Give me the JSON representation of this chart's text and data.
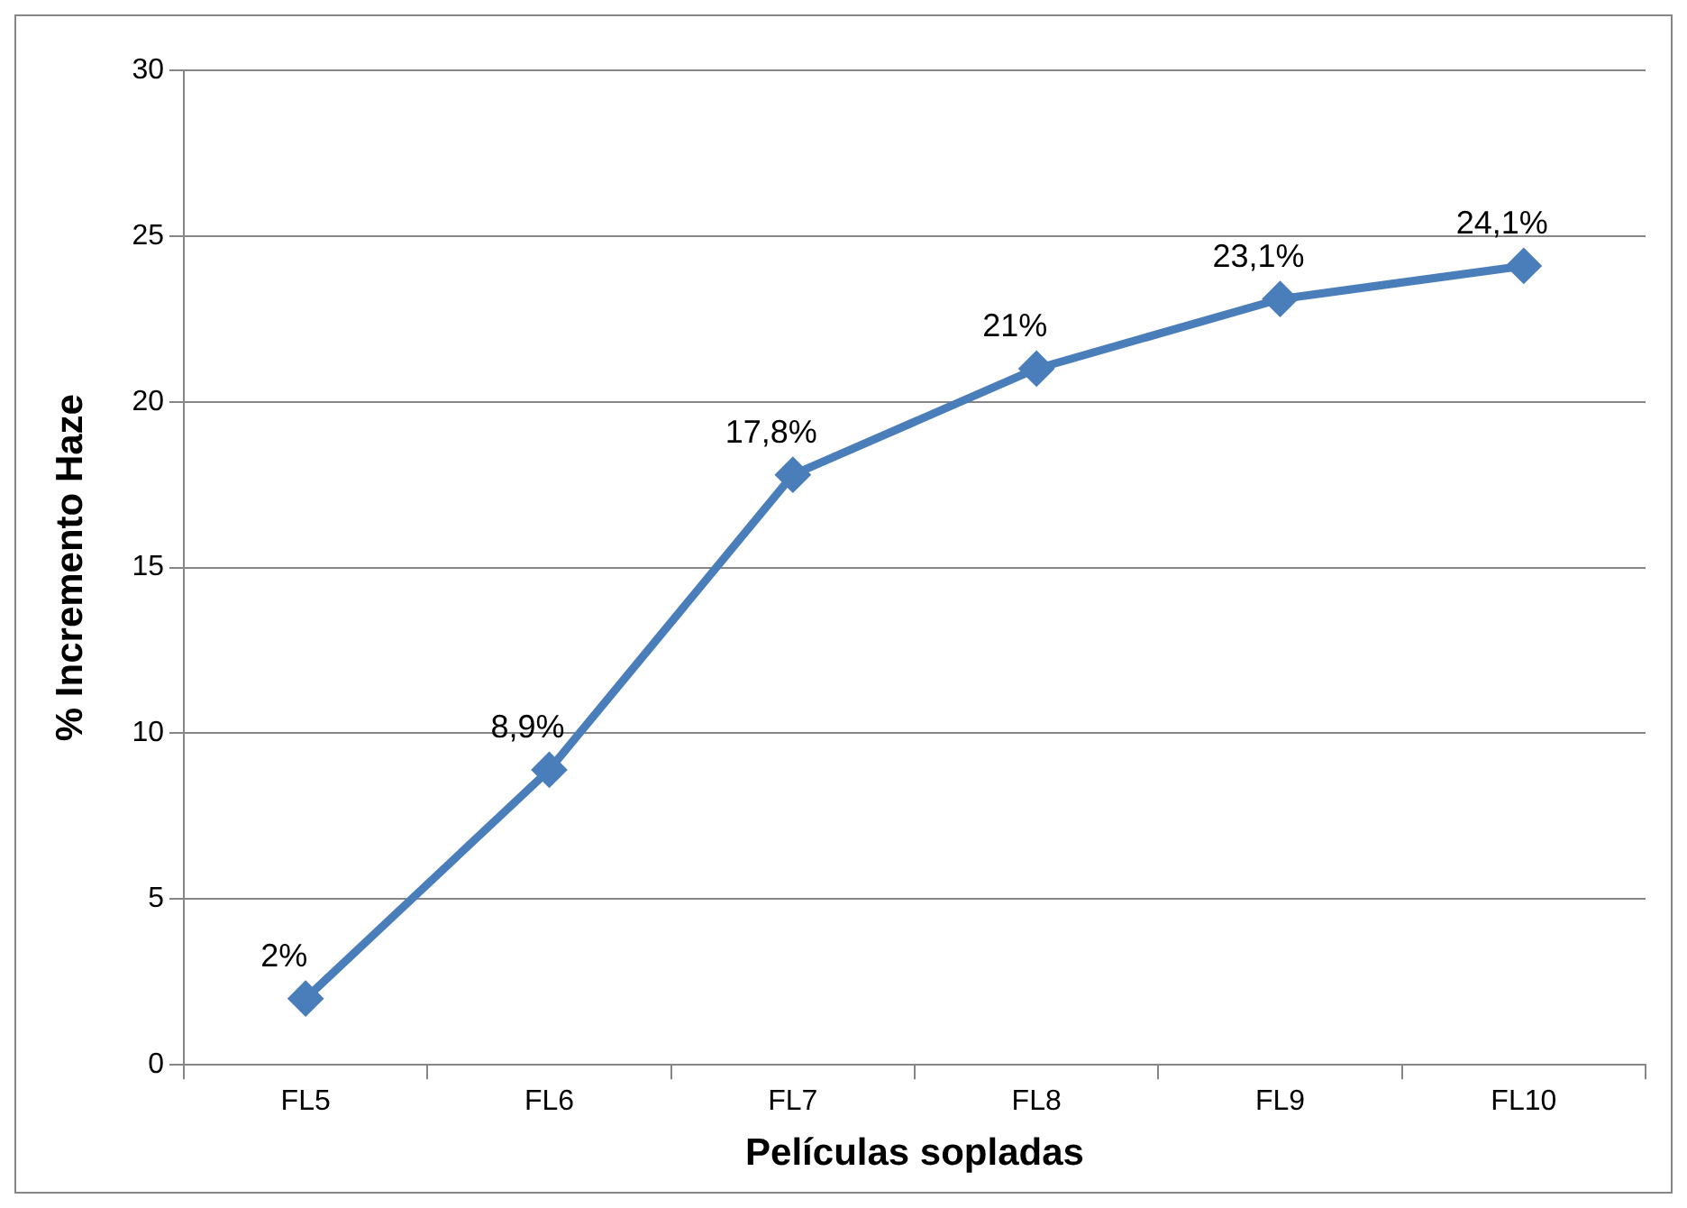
{
  "chart_data": {
    "type": "line",
    "xlabel": "Películas sopladas",
    "ylabel": "% Incremento Haze",
    "categories": [
      "FL5",
      "FL6",
      "FL7",
      "FL8",
      "FL9",
      "FL10"
    ],
    "series": [
      {
        "color": "#4a7ebb",
        "values": [
          2,
          8.9,
          17.8,
          21,
          23.1,
          24.1
        ],
        "value_labels": [
          "2%",
          "8,9%",
          "17,8%",
          "21%",
          "23,1%",
          "24,1%"
        ]
      }
    ],
    "ylim": [
      0,
      30
    ],
    "yticks": [
      0,
      5,
      10,
      15,
      20,
      25,
      30
    ],
    "grid": "y",
    "legend": false,
    "marker": "diamond",
    "line_style": "solid"
  }
}
